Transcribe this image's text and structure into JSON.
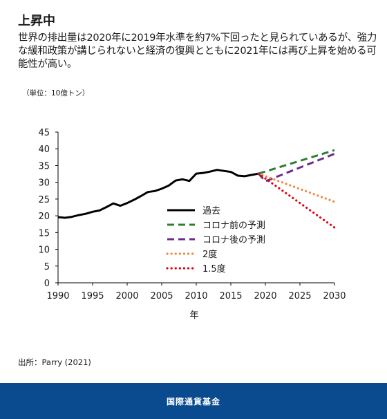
{
  "header": {
    "title": "上昇中",
    "subtitle": "世界の排出量は2020年に2019年水準を約7%下回ったと見られていあるが、強力な緩和政策が講じられないと経済の復興とともに2021年には再び上昇を始める可能性が高い。"
  },
  "unit_label": "（単位：10億トン）",
  "source": "出所：Parry (2021)",
  "footer": {
    "org_name": "国際通貨基金"
  },
  "colors": {
    "historical": "#000000",
    "pre_covid": "#2e7d32",
    "post_covid": "#6a2c91",
    "two_degree": "#ef8a3d",
    "one_five_degree": "#e3000f",
    "footer_bg": "#0a4b8f"
  },
  "chart_data": {
    "type": "line",
    "xlabel": "年",
    "ylabel": "",
    "xlim": [
      1990,
      2030
    ],
    "ylim": [
      0,
      45
    ],
    "x_ticks": [
      1990,
      1995,
      2000,
      2005,
      2010,
      2015,
      2020,
      2025,
      2030
    ],
    "y_ticks": [
      0,
      5,
      10,
      15,
      20,
      25,
      30,
      35,
      40,
      45
    ],
    "grid": false,
    "legend_position": "center-right",
    "series": [
      {
        "name": "過去",
        "style": "solid",
        "color": "#000000",
        "points": [
          [
            1990,
            19.6
          ],
          [
            1991,
            19.4
          ],
          [
            1992,
            19.7
          ],
          [
            1993,
            20.2
          ],
          [
            1994,
            20.6
          ],
          [
            1995,
            21.2
          ],
          [
            1996,
            21.6
          ],
          [
            1997,
            22.6
          ],
          [
            1998,
            23.7
          ],
          [
            1999,
            23.0
          ],
          [
            2000,
            23.8
          ],
          [
            2001,
            24.8
          ],
          [
            2002,
            25.9
          ],
          [
            2003,
            27.1
          ],
          [
            2004,
            27.4
          ],
          [
            2005,
            28.1
          ],
          [
            2006,
            29.0
          ],
          [
            2007,
            30.5
          ],
          [
            2008,
            30.9
          ],
          [
            2009,
            30.4
          ],
          [
            2010,
            32.6
          ],
          [
            2011,
            32.8
          ],
          [
            2012,
            33.2
          ],
          [
            2013,
            33.7
          ],
          [
            2014,
            33.4
          ],
          [
            2015,
            33.1
          ],
          [
            2016,
            32.0
          ],
          [
            2017,
            31.8
          ],
          [
            2018,
            32.2
          ],
          [
            2019,
            32.6
          ]
        ]
      },
      {
        "name": "コロナ前の予測",
        "style": "dashed",
        "color": "#2e7d32",
        "points": [
          [
            2019,
            32.6
          ],
          [
            2030,
            39.6
          ]
        ]
      },
      {
        "name": "コロナ後の予測",
        "style": "dashed",
        "color": "#6a2c91",
        "points": [
          [
            2019,
            32.6
          ],
          [
            2020,
            30.3
          ],
          [
            2030,
            38.5
          ]
        ]
      },
      {
        "name": "2度",
        "style": "dotted",
        "color": "#ef8a3d",
        "points": [
          [
            2019,
            32.6
          ],
          [
            2030,
            24.2
          ]
        ]
      },
      {
        "name": "1.5度",
        "style": "dotted",
        "color": "#e3000f",
        "points": [
          [
            2019,
            32.6
          ],
          [
            2030,
            16.5
          ]
        ]
      }
    ]
  }
}
